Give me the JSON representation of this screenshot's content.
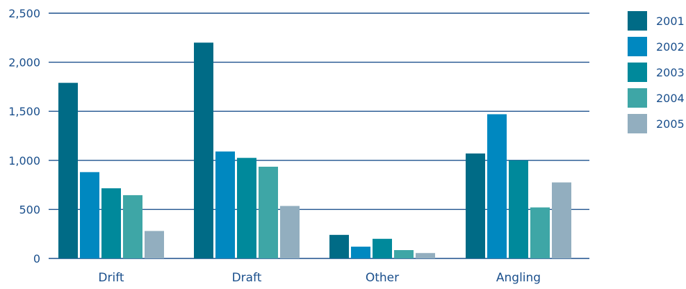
{
  "chart_data": {
    "type": "bar",
    "title": "",
    "xlabel": "",
    "ylabel": "",
    "categories": [
      "Drift",
      "Draft",
      "Other",
      "Angling"
    ],
    "ylim": [
      0,
      2500
    ],
    "yticks": [
      0,
      500,
      1000,
      1500,
      2000,
      2500
    ],
    "ytick_labels": [
      "0",
      "500",
      "1,000",
      "1,500",
      "2,000",
      "2,500"
    ],
    "grid": true,
    "legend": "right",
    "series": [
      {
        "name": "2001",
        "color": "#006b86",
        "values": [
          1790,
          2200,
          240,
          1070
        ]
      },
      {
        "name": "2002",
        "color": "#0088c0",
        "values": [
          880,
          1090,
          120,
          1470
        ]
      },
      {
        "name": "2003",
        "color": "#00899b",
        "values": [
          715,
          1025,
          200,
          1000
        ]
      },
      {
        "name": "2004",
        "color": "#3ea6a6",
        "values": [
          645,
          935,
          85,
          520
        ]
      },
      {
        "name": "2005",
        "color": "#92aebf",
        "values": [
          280,
          535,
          55,
          775
        ]
      }
    ]
  }
}
